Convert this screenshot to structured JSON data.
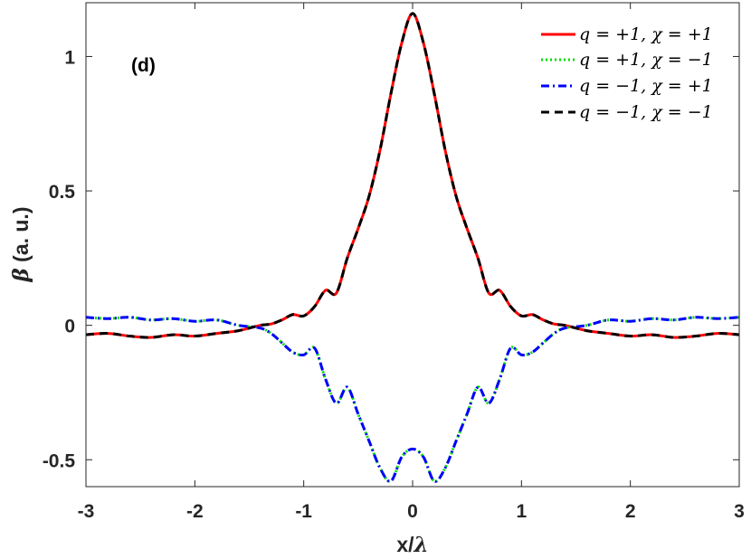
{
  "chart_data": {
    "type": "line",
    "panel_label": "(d)",
    "xlabel": "x/λ",
    "xlabel_main": "x/",
    "xlabel_symbol": "λ",
    "ylabel": "β (a. u.)",
    "ylabel_symbol": "β",
    "ylabel_main": " (a. u.)",
    "xlim": [
      -3,
      3
    ],
    "ylim": [
      -0.6,
      1.2
    ],
    "xticks": [
      -3,
      -2,
      -1,
      0,
      1,
      2,
      3
    ],
    "xtick_labels": [
      "-3",
      "-2",
      "-1",
      "0",
      "1",
      "2",
      "3"
    ],
    "yticks": [
      -0.5,
      0,
      0.5,
      1
    ],
    "ytick_labels": [
      "-0.5",
      "0",
      "0.5",
      "1"
    ],
    "grid": false,
    "legend_position": "top-right",
    "x": [
      -3,
      -2.8,
      -2.6,
      -2.4,
      -2.2,
      -2,
      -1.8,
      -1.6,
      -1.4,
      -1.3,
      -1.2,
      -1.1,
      -1,
      -0.9,
      -0.8,
      -0.7,
      -0.6,
      -0.5,
      -0.4,
      -0.3,
      -0.2,
      -0.1,
      0,
      0.1,
      0.2,
      0.3,
      0.4,
      0.5,
      0.6,
      0.7,
      0.8,
      0.9,
      1,
      1.1,
      1.2,
      1.3,
      1.4,
      1.6,
      1.8,
      2,
      2.2,
      2.4,
      2.6,
      2.8,
      3
    ],
    "series": [
      {
        "name": "q = +1, χ = +1",
        "color": "#ff0000",
        "dash": "solid",
        "values": [
          -0.035,
          -0.03,
          -0.04,
          -0.045,
          -0.035,
          -0.04,
          -0.03,
          -0.02,
          0.0,
          0.005,
          0.02,
          0.04,
          0.035,
          0.07,
          0.13,
          0.12,
          0.25,
          0.36,
          0.48,
          0.65,
          0.86,
          1.05,
          1.16,
          1.05,
          0.86,
          0.65,
          0.48,
          0.36,
          0.25,
          0.12,
          0.13,
          0.07,
          0.035,
          0.04,
          0.02,
          0.005,
          0.0,
          -0.02,
          -0.03,
          -0.04,
          -0.035,
          -0.045,
          -0.04,
          -0.03,
          -0.035
        ]
      },
      {
        "name": "q = +1, χ = −1",
        "color": "#00dd00",
        "dash": "dotted",
        "values": [
          0.03,
          0.025,
          0.03,
          0.02,
          0.025,
          0.015,
          0.02,
          0.0,
          -0.01,
          -0.03,
          -0.065,
          -0.1,
          -0.11,
          -0.085,
          -0.2,
          -0.29,
          -0.23,
          -0.33,
          -0.43,
          -0.53,
          -0.58,
          -0.49,
          -0.46,
          -0.49,
          -0.58,
          -0.53,
          -0.43,
          -0.33,
          -0.23,
          -0.29,
          -0.2,
          -0.085,
          -0.11,
          -0.1,
          -0.065,
          -0.03,
          -0.01,
          0.0,
          0.02,
          0.015,
          0.025,
          0.02,
          0.03,
          0.025,
          0.03
        ]
      },
      {
        "name": "q = −1, χ = +1",
        "color": "#0000ff",
        "dash": "dashdot",
        "values": [
          0.03,
          0.025,
          0.03,
          0.02,
          0.025,
          0.015,
          0.02,
          0.0,
          -0.01,
          -0.03,
          -0.065,
          -0.1,
          -0.11,
          -0.085,
          -0.2,
          -0.29,
          -0.23,
          -0.33,
          -0.43,
          -0.53,
          -0.58,
          -0.49,
          -0.46,
          -0.49,
          -0.58,
          -0.53,
          -0.43,
          -0.33,
          -0.23,
          -0.29,
          -0.2,
          -0.085,
          -0.11,
          -0.1,
          -0.065,
          -0.03,
          -0.01,
          0.0,
          0.02,
          0.015,
          0.025,
          0.02,
          0.03,
          0.025,
          0.03
        ]
      },
      {
        "name": "q = −1, χ = −1",
        "color": "#000000",
        "dash": "dashed",
        "values": [
          -0.035,
          -0.03,
          -0.04,
          -0.045,
          -0.035,
          -0.04,
          -0.03,
          -0.02,
          0.0,
          0.005,
          0.02,
          0.04,
          0.035,
          0.07,
          0.13,
          0.12,
          0.25,
          0.36,
          0.48,
          0.65,
          0.86,
          1.05,
          1.16,
          1.05,
          0.86,
          0.65,
          0.48,
          0.36,
          0.25,
          0.12,
          0.13,
          0.07,
          0.035,
          0.04,
          0.02,
          0.005,
          0.0,
          -0.02,
          -0.03,
          -0.04,
          -0.035,
          -0.045,
          -0.04,
          -0.03,
          -0.035
        ]
      }
    ]
  }
}
